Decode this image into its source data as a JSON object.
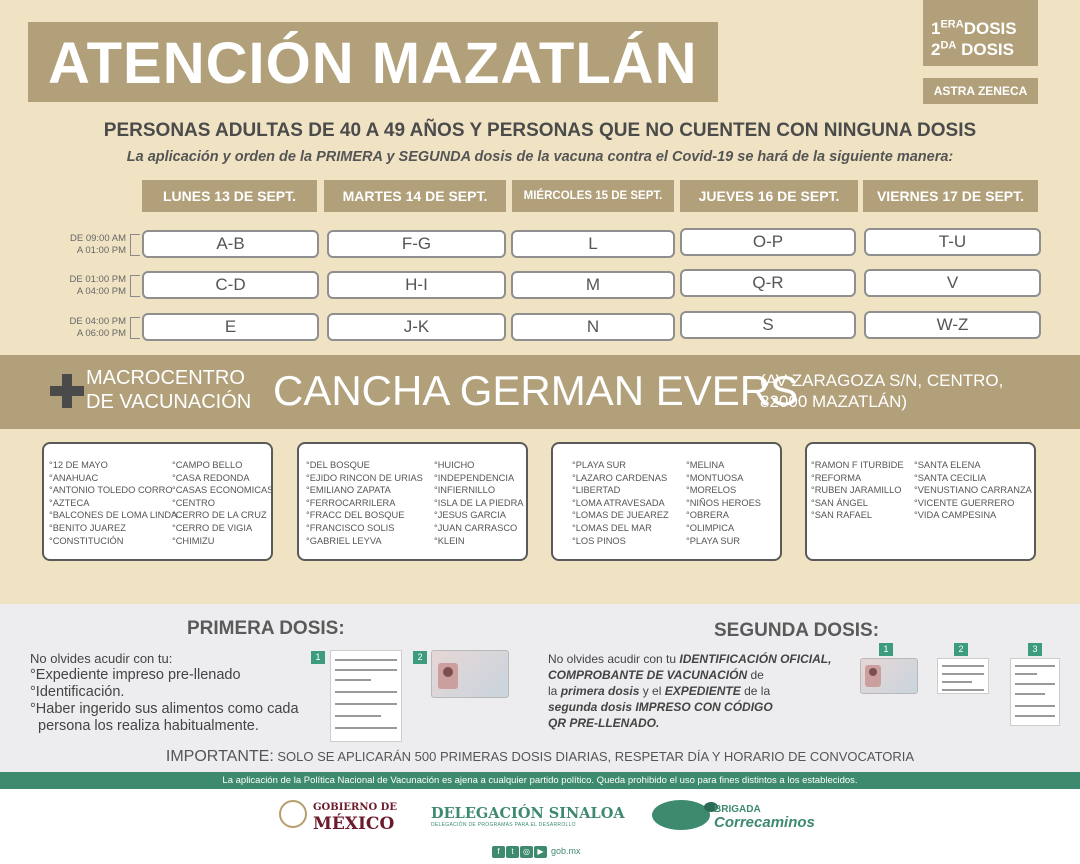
{
  "header": {
    "title": "ATENCIÓN MAZATLÁN",
    "dose1_num": "1",
    "dose1_sup": "ERA",
    "dose1_word": "DOSIS",
    "dose2_num": "2",
    "dose2_sup": "DA",
    "dose2_word": "DOSIS",
    "vaccine": "ASTRA ZENECA"
  },
  "headline": "PERSONAS ADULTAS DE 40 A 49 AÑOS Y PERSONAS QUE NO CUENTEN CON NINGUNA DOSIS",
  "subline": "La aplicación y orden de la PRIMERA y SEGUNDA dosis de la vacuna contra el Covid-19 se hará de la siguiente manera:",
  "days": [
    "LUNES 13 DE SEPT.",
    "MARTES 14 DE SEPT.",
    "MIÉRCOLES 15 DE SEPT.",
    "JUEVES 16 DE SEPT.",
    "VIERNES 17 DE SEPT."
  ],
  "times": [
    {
      "from": "DE 09:00 AM",
      "to": "A 01:00 PM"
    },
    {
      "from": "DE 01:00 PM",
      "to": "A 04:00 PM"
    },
    {
      "from": "DE 04:00 PM",
      "to": "A 06:00 PM"
    }
  ],
  "schedule": [
    [
      "A-B",
      "F-G",
      "L",
      "O-P",
      "T-U"
    ],
    [
      "C-D",
      "H-I",
      "M",
      "Q-R",
      "V"
    ],
    [
      "E",
      "J-K",
      "N",
      "S",
      "W-Z"
    ]
  ],
  "center": {
    "label_line1": "MACROCENTRO",
    "label_line2": "DE VACUNACIÓN",
    "name": "CANCHA GERMAN EVERS",
    "address_line1": "(AV ZARAGOZA S/N, CENTRO,",
    "address_line2": "82000 MAZATLÁN)"
  },
  "colonias": [
    {
      "a": [
        "°12 DE MAYO",
        "°ANAHUAC",
        "°ANTONIO TOLEDO CORRO",
        "°AZTECA",
        "°BALCONES DE LOMA LINDA",
        "°BENITO JUAREZ",
        "°CONSTITUCIÓN"
      ],
      "b": [
        "°CAMPO BELLO",
        "°CASA REDONDA",
        "°CASAS ECONOMICAS",
        "°CENTRO",
        "°CERRO DE LA CRUZ",
        "°CERRO DE VIGIA",
        "°CHIMIZU"
      ]
    },
    {
      "a": [
        "°DEL BOSQUE",
        "°EJIDO RINCON DE URIAS",
        "°EMILIANO ZAPATA",
        "°FERROCARRILERA",
        "°FRACC DEL BOSQUE",
        "°FRANCISCO SOLIS",
        "°GABRIEL LEYVA"
      ],
      "b": [
        "°HUICHO",
        "°INDEPENDENCIA",
        "°INFIERNILLO",
        "°ISLA DE LA PIEDRA",
        "°JESUS GARCIA",
        "°JUAN CARRASCO",
        "°KLEIN"
      ]
    },
    {
      "a": [
        "°PLAYA SUR",
        "°LAZARO CARDENAS",
        "°LIBERTAD",
        "°LOMA ATRAVESADA",
        "°LOMAS DE JUEAREZ",
        "°LOMAS DEL MAR",
        "°LOS PINOS"
      ],
      "b": [
        "°MELINA",
        "°MONTUOSA",
        "°MORELOS",
        "°NIÑOS HEROES",
        "°OBRERA",
        "°OLIMPICA",
        "°PLAYA SUR"
      ]
    },
    {
      "a": [
        "°RAMON F ITURBIDE",
        "°REFORMA",
        "°RUBEN JARAMILLO",
        "°SAN ÁNGEL",
        "°SAN RAFAEL"
      ],
      "b": [
        "°SANTA ELENA",
        "°SANTA CECILIA",
        "°VENUSTIANO CARRANZA",
        "°VICENTE GUERRERO",
        "°VIDA CAMPESINA"
      ]
    }
  ],
  "primera": {
    "title": "PRIMERA DOSIS:",
    "intro": "No olvides acudir con tu:",
    "items": [
      "°Expediente impreso pre-llenado",
      "°Identificación.",
      "°Haber ingerido sus alimentos como cada",
      "  persona los realiza habitualmente."
    ],
    "steps": [
      "1",
      "2"
    ]
  },
  "segunda": {
    "title": "SEGUNDA DOSIS:",
    "t1": "No olvides acudir con tu ",
    "t2": "IDENTIFICACIÓN OFICIAL,",
    "t3": "COMPROBANTE DE VACUNACIÓN",
    "t4": " de",
    "t5": "la ",
    "t6": "primera dosis",
    "t7": " y el ",
    "t8": "EXPEDIENTE",
    "t9": " de la",
    "t10": "segunda dosis IMPRESO CON CÓDIGO",
    "t11": "QR PRE-LLENADO.",
    "steps": [
      "1",
      "2",
      "3"
    ]
  },
  "important": {
    "label": "IMPORTANTE:",
    "text": " SOLO SE APLICARÁN 500 PRIMERAS DOSIS DIARIAS, RESPETAR DÍA Y HORARIO DE CONVOCATORIA"
  },
  "disclaimer": "La aplicación de la Política Nacional de Vacunación es ajena a cualquier partido político. Queda prohibido el uso para fines distintos a los establecidos.",
  "footer": {
    "gob_line1": "GOBIERNO DE",
    "gob_line2": "MÉXICO",
    "delegacion": "DELEGACIÓN SINALOA",
    "delegacion_sub": "DELEGACIÓN DE PROGRAMAS PARA EL DESARROLLO",
    "brigada_line1": "BRIGADA",
    "brigada_line2": "Correcaminos",
    "social": [
      "f",
      "t",
      "◎",
      "▶"
    ],
    "site": "gob.mx"
  }
}
